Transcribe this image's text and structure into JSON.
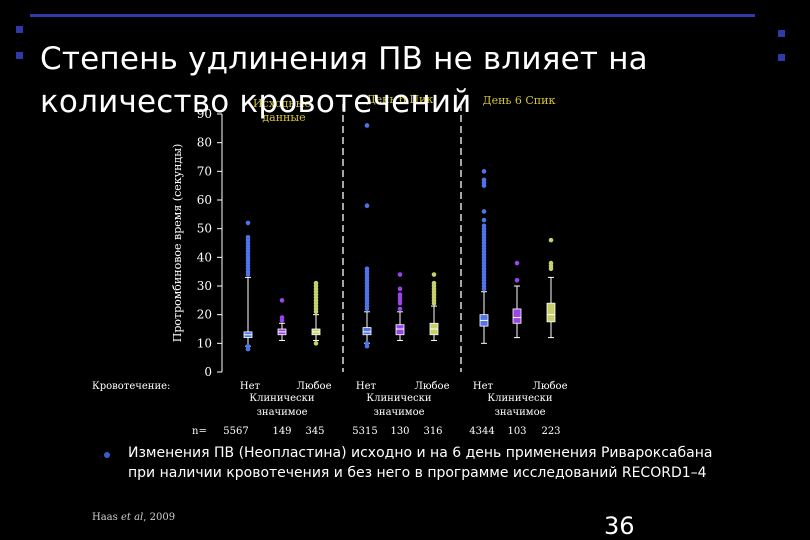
{
  "slide": {
    "title": "Степень удлинения ПВ не влияет на количество кровотечений",
    "bullet": "Изменения ПВ (Неопластина) исходно и на 6 день применения Ривароксабана при наличии кровотечения и без него в программе исследований RECORD1–4",
    "citation_authors": "Haas ",
    "citation_etal": "et al",
    "citation_year": ", 2009",
    "slide_number": "36"
  },
  "colors": {
    "background": "#000000",
    "accent_blue": "#2f3aa8",
    "group1": "#4f73e8",
    "group2": "#9a46e8",
    "group3": "#c8d06a",
    "panel_label": "#d4c430"
  },
  "chart_data": {
    "type": "box",
    "ylabel": "Протромбиновое время (секунды)",
    "ylim": [
      0,
      90
    ],
    "yticks": [
      0,
      10,
      20,
      30,
      40,
      50,
      60,
      70,
      80,
      90
    ],
    "row_label_bleeding": "Кровотечение:",
    "row_label_n": "n=",
    "panels": [
      {
        "label": "Исходные данные",
        "groups": [
          {
            "category": "Нет",
            "n": "5567",
            "median": 13,
            "q1": 12,
            "q3": 14,
            "whisker_low": 9,
            "whisker_high": 33,
            "outliers": [
              8,
              9,
              34,
              35,
              36,
              37,
              38,
              39,
              40,
              41,
              42,
              43,
              44,
              45,
              46,
              47,
              52
            ]
          },
          {
            "category": "Клинически значимое",
            "n": "149",
            "median": 14,
            "q1": 13,
            "q3": 15,
            "whisker_low": 11,
            "whisker_high": 17,
            "outliers": [
              18,
              19,
              25
            ]
          },
          {
            "category": "Любое",
            "n": "345",
            "median": 14,
            "q1": 13,
            "q3": 15,
            "whisker_low": 11,
            "whisker_high": 20,
            "outliers": [
              10,
              21,
              22,
              23,
              24,
              25,
              26,
              27,
              28,
              29,
              30,
              31
            ]
          }
        ]
      },
      {
        "label": "День 6 Пик",
        "groups": [
          {
            "category": "Нет",
            "n": "5315",
            "median": 14,
            "q1": 13,
            "q3": 15.5,
            "whisker_low": 10,
            "whisker_high": 21,
            "outliers": [
              9,
              10,
              22,
              23,
              24,
              25,
              26,
              27,
              28,
              29,
              30,
              31,
              32,
              33,
              34,
              35,
              36,
              58,
              86
            ]
          },
          {
            "category": "Клинически значимое",
            "n": "130",
            "median": 15,
            "q1": 13,
            "q3": 16.5,
            "whisker_low": 11,
            "whisker_high": 21,
            "outliers": [
              22,
              24,
              25,
              26,
              27,
              29,
              34
            ]
          },
          {
            "category": "Любое",
            "n": "316",
            "median": 15,
            "q1": 13,
            "q3": 17,
            "whisker_low": 11,
            "whisker_high": 23,
            "outliers": [
              24,
              25,
              26,
              27,
              28,
              29,
              30,
              31,
              34
            ]
          }
        ]
      },
      {
        "label": "День 6 Спик",
        "groups": [
          {
            "category": "Нет",
            "n": "4344",
            "median": 18,
            "q1": 16,
            "q3": 20,
            "whisker_low": 10,
            "whisker_high": 28,
            "outliers": [
              29,
              30,
              31,
              32,
              33,
              34,
              35,
              36,
              37,
              38,
              39,
              40,
              41,
              42,
              43,
              44,
              45,
              46,
              47,
              48,
              49,
              50,
              51,
              53,
              56,
              65,
              66,
              67,
              70
            ]
          },
          {
            "category": "Клинически значимое",
            "n": "103",
            "median": 19,
            "q1": 17,
            "q3": 22,
            "whisker_low": 12,
            "whisker_high": 30,
            "outliers": [
              32,
              38
            ]
          },
          {
            "category": "Любое",
            "n": "223",
            "median": 20,
            "q1": 17.5,
            "q3": 24,
            "whisker_low": 12,
            "whisker_high": 33,
            "outliers": [
              36,
              37,
              38,
              46
            ]
          }
        ]
      }
    ]
  }
}
